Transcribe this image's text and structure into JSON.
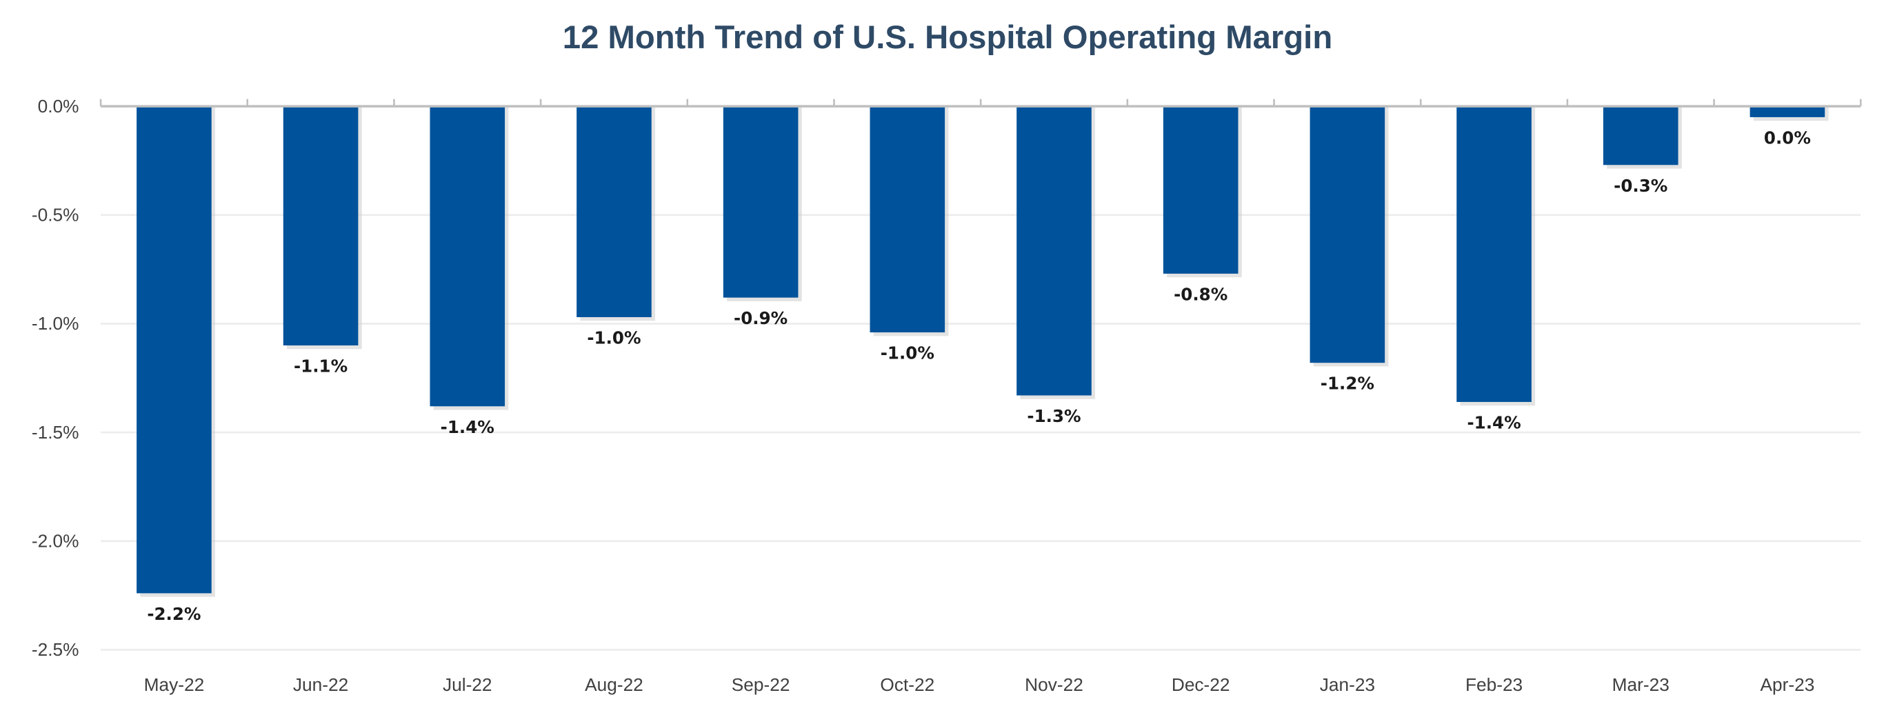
{
  "chart_data": {
    "type": "bar",
    "title": "12 Month Trend of U.S. Hospital Operating Margin",
    "xlabel": "",
    "ylabel": "",
    "categories": [
      "May-22",
      "Jun-22",
      "Jul-22",
      "Aug-22",
      "Sep-22",
      "Oct-22",
      "Nov-22",
      "Dec-22",
      "Jan-23",
      "Feb-23",
      "Mar-23",
      "Apr-23"
    ],
    "values": [
      -2.24,
      -1.1,
      -1.38,
      -0.97,
      -0.88,
      -1.04,
      -1.33,
      -0.77,
      -1.18,
      -1.36,
      -0.27,
      -0.05
    ],
    "data_labels": [
      "-2.2%",
      "-1.1%",
      "-1.4%",
      "-1.0%",
      "-0.9%",
      "-1.0%",
      "-1.3%",
      "-0.8%",
      "-1.2%",
      "-1.4%",
      "-0.3%",
      "0.0%"
    ],
    "ylim": [
      -2.5,
      0
    ],
    "yticks": [
      0,
      -0.5,
      -1.0,
      -1.5,
      -2.0,
      -2.5
    ],
    "ytick_labels": [
      "0.0%",
      "-0.5%",
      "-1.0%",
      "-1.5%",
      "-2.0%",
      "-2.5%"
    ],
    "grid": true,
    "legend": "none",
    "colors": {
      "bar": "#00529b",
      "title": "#2e4a66",
      "grid": "#ececec",
      "axis": "#bfbfbf"
    }
  }
}
